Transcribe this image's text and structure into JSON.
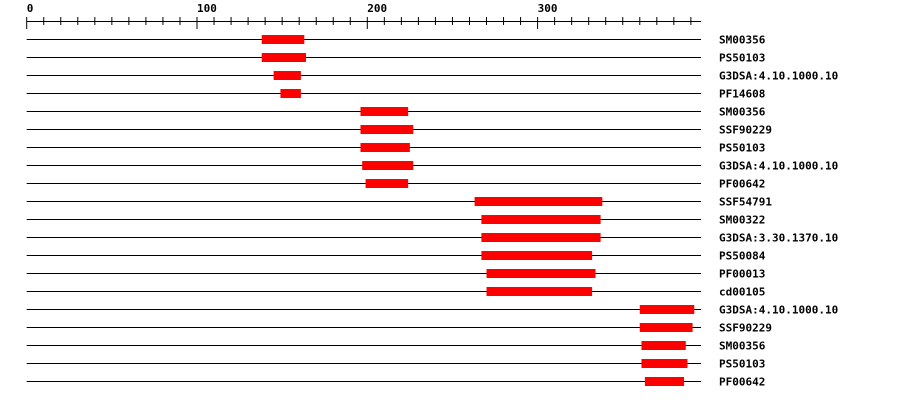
{
  "axis": {
    "min": 0,
    "max": 396,
    "major_step": 100,
    "minor_step": 10,
    "tick_labels": [
      "0",
      "100",
      "200",
      "300"
    ]
  },
  "colors": {
    "domain": "#ff0000",
    "line": "#000000"
  },
  "tracks": [
    {
      "label": "SM00356",
      "start": 138,
      "end": 163
    },
    {
      "label": "PS50103",
      "start": 138,
      "end": 164
    },
    {
      "label": "G3DSA:4.10.1000.10",
      "start": 145,
      "end": 161
    },
    {
      "label": "PF14608",
      "start": 149,
      "end": 161
    },
    {
      "label": "SM00356",
      "start": 196,
      "end": 224
    },
    {
      "label": "SSF90229",
      "start": 196,
      "end": 227
    },
    {
      "label": "PS50103",
      "start": 196,
      "end": 225
    },
    {
      "label": "G3DSA:4.10.1000.10",
      "start": 197,
      "end": 227
    },
    {
      "label": "PF00642",
      "start": 199,
      "end": 224
    },
    {
      "label": "SSF54791",
      "start": 263,
      "end": 338
    },
    {
      "label": "SM00322",
      "start": 267,
      "end": 337
    },
    {
      "label": "G3DSA:3.30.1370.10",
      "start": 267,
      "end": 337
    },
    {
      "label": "PS50084",
      "start": 267,
      "end": 332
    },
    {
      "label": "PF00013",
      "start": 270,
      "end": 334
    },
    {
      "label": "cd00105",
      "start": 270,
      "end": 332
    },
    {
      "label": "G3DSA:4.10.1000.10",
      "start": 360,
      "end": 392
    },
    {
      "label": "SSF90229",
      "start": 360,
      "end": 391
    },
    {
      "label": "SM00356",
      "start": 361,
      "end": 387
    },
    {
      "label": "PS50103",
      "start": 361,
      "end": 388
    },
    {
      "label": "PF00642",
      "start": 363,
      "end": 386
    }
  ]
}
